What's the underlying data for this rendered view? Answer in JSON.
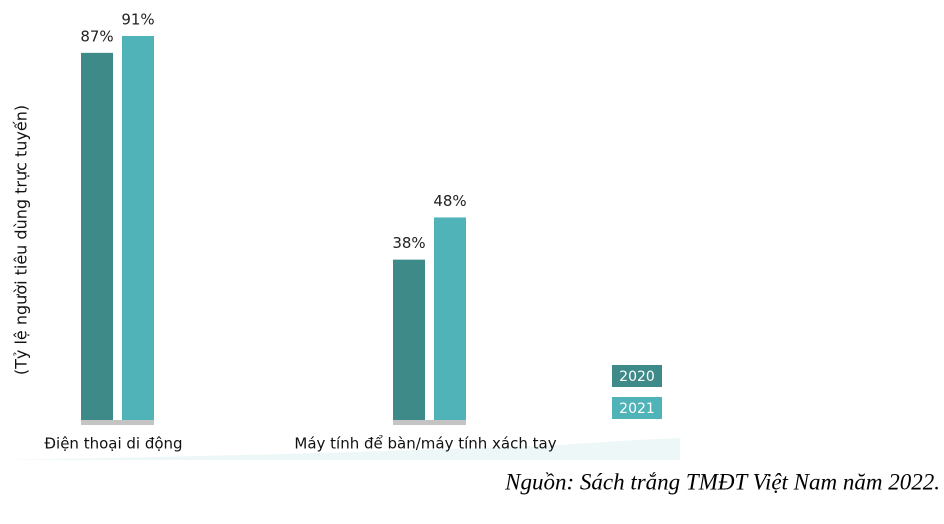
{
  "chart_data": {
    "type": "bar",
    "y_label": "(Tỷ lệ người tiêu dùng trực tuyến)",
    "categories": [
      "Điện thoại di động",
      "Máy tính để bàn/máy tính xách tay"
    ],
    "series": [
      {
        "name": "2020",
        "color": "#3d8a89",
        "values": [
          87,
          38
        ],
        "value_labels": [
          "87%",
          "38%"
        ]
      },
      {
        "name": "2021",
        "color": "#4fb3b8",
        "values": [
          91,
          48
        ],
        "value_labels": [
          "91%",
          "48%"
        ]
      }
    ],
    "ylim": [
      0,
      100
    ],
    "source": "Nguồn: Sách trắng TMĐT Việt Nam năm 2022."
  }
}
